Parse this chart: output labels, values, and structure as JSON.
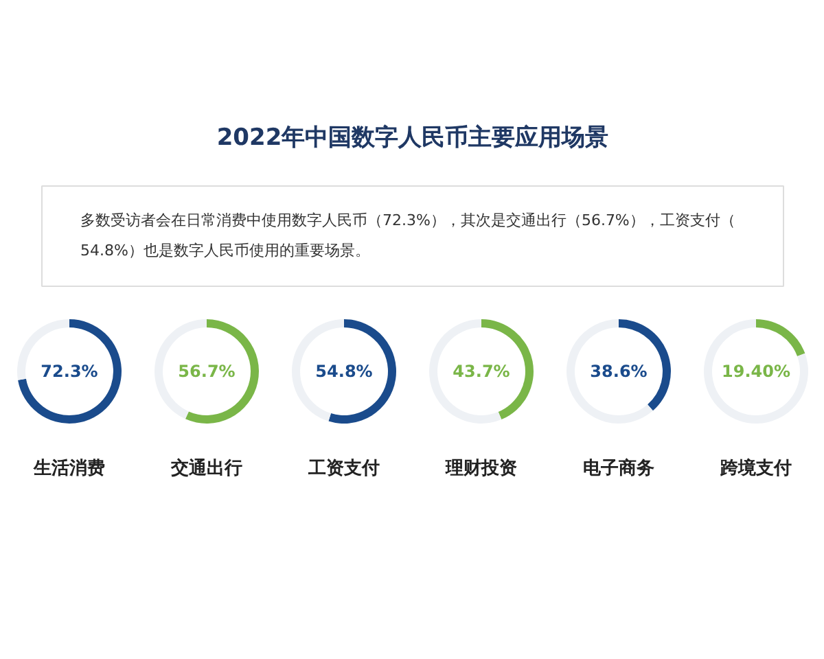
{
  "chart_data": [
    {
      "type": "other",
      "title": "2022年中国数字人民币主要应用场景",
      "annotations": [
        "多数受访者会在日常消费中使用数字人民币（72.3%），其次是交通出行（56.7%），工资支付（54.8%）也是数字人民币使用的重要场景。"
      ]
    },
    {
      "type": "donut",
      "title": "生活消费",
      "categories": [
        null,
        null
      ],
      "values": [
        72.3,
        27.7
      ],
      "colors": [
        "#1a4b8c",
        "#eef1f5"
      ],
      "value_labels": [
        "72.3%",
        null
      ]
    },
    {
      "type": "donut",
      "title": "交通出行",
      "categories": [
        null,
        null
      ],
      "values": [
        56.7,
        43.3
      ],
      "colors": [
        "#7ab648",
        "#eef1f5"
      ],
      "value_labels": [
        "56.7%",
        null
      ]
    },
    {
      "type": "donut",
      "title": "工资支付",
      "categories": [
        null,
        null
      ],
      "values": [
        54.8,
        45.2
      ],
      "colors": [
        "#1a4b8c",
        "#eef1f5"
      ],
      "value_labels": [
        "54.8%",
        null
      ]
    },
    {
      "type": "donut",
      "title": "理财投资",
      "categories": [
        null,
        null
      ],
      "values": [
        43.7,
        56.3
      ],
      "colors": [
        "#7ab648",
        "#eef1f5"
      ],
      "value_labels": [
        "43.7%",
        null
      ]
    },
    {
      "type": "donut",
      "title": "电子商务",
      "categories": [
        null,
        null
      ],
      "values": [
        38.6,
        61.4
      ],
      "colors": [
        "#1a4b8c",
        "#eef1f5"
      ],
      "value_labels": [
        "38.6%",
        null
      ]
    },
    {
      "type": "donut",
      "title": "跨境支付",
      "categories": [
        null,
        null
      ],
      "values": [
        19.4,
        80.6
      ],
      "colors": [
        "#7ab648",
        "#eef1f5"
      ],
      "value_labels": [
        "19.40%",
        null
      ]
    }
  ]
}
